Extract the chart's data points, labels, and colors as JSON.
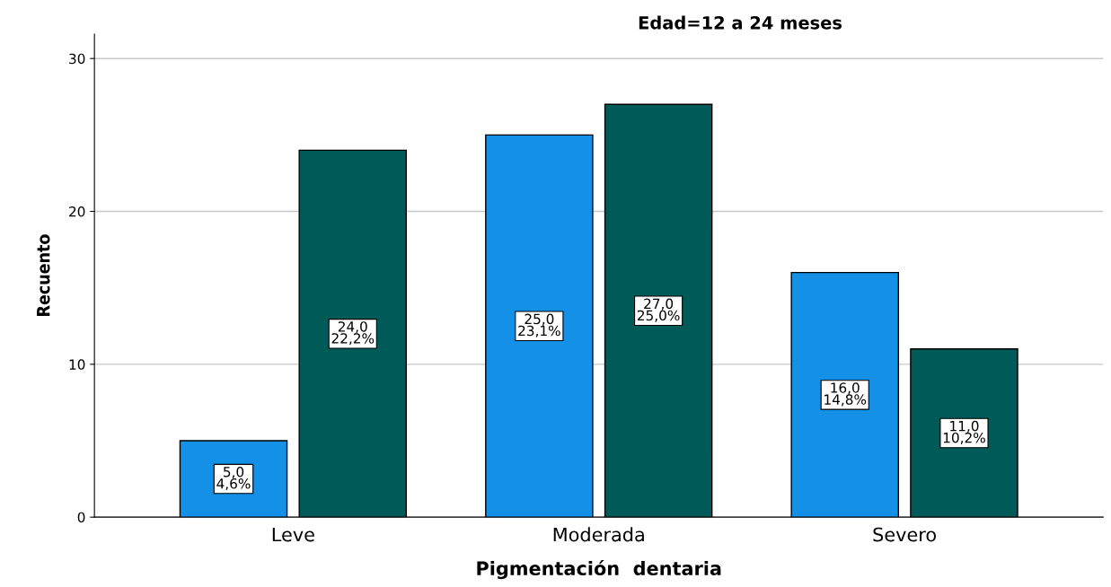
{
  "chart_data": {
    "type": "bar",
    "title": "Edad=12 a 24 meses",
    "xlabel": "Pigmentación  dentaria",
    "ylabel": "Recuento",
    "categories": [
      "Leve",
      "Moderada",
      "Severo"
    ],
    "series": [
      {
        "color": "#1490e6",
        "values": [
          5,
          25,
          16
        ],
        "value_labels": [
          "5,0\n4,6%",
          "25,0\n23,1%",
          "16,0\n14,8%"
        ]
      },
      {
        "color": "#005a57",
        "values": [
          24,
          27,
          11
        ],
        "value_labels": [
          "24,0\n22,2%",
          "27,0\n25,0%",
          "11,0\n10,2%"
        ]
      }
    ],
    "ylim": [
      0,
      31.6
    ],
    "yticks": [
      0,
      10,
      20,
      30
    ],
    "grid": "y",
    "legend": false
  }
}
